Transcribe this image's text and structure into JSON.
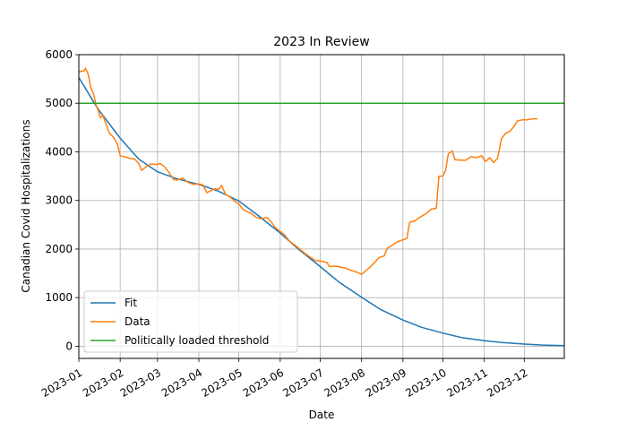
{
  "chart_data": {
    "type": "line",
    "title": "2023 In Review",
    "xlabel": "Date",
    "ylabel": "Canadian Covid Hospitalizations",
    "xlim": [
      "2023-01-01",
      "2023-12-31"
    ],
    "ylim": [
      -250,
      6000
    ],
    "x_ticks": [
      {
        "date": "2023-01-01",
        "label": "2023-01"
      },
      {
        "date": "2023-02-01",
        "label": "2023-02"
      },
      {
        "date": "2023-03-01",
        "label": "2023-03"
      },
      {
        "date": "2023-04-01",
        "label": "2023-04"
      },
      {
        "date": "2023-05-01",
        "label": "2023-05"
      },
      {
        "date": "2023-06-01",
        "label": "2023-06"
      },
      {
        "date": "2023-07-01",
        "label": "2023-07"
      },
      {
        "date": "2023-08-01",
        "label": "2023-08"
      },
      {
        "date": "2023-09-01",
        "label": "2023-09"
      },
      {
        "date": "2023-10-01",
        "label": "2023-10"
      },
      {
        "date": "2023-11-01",
        "label": "2023-11"
      },
      {
        "date": "2023-12-01",
        "label": "2023-12"
      }
    ],
    "y_ticks": [
      0,
      1000,
      2000,
      3000,
      4000,
      5000,
      6000
    ],
    "grid": true,
    "legend_position": "lower-left",
    "series": [
      {
        "name": "Fit",
        "color": "#1f77b4",
        "points": [
          [
            "2023-01-01",
            5530
          ],
          [
            "2023-01-15",
            4900
          ],
          [
            "2023-02-01",
            4280
          ],
          [
            "2023-02-15",
            3850
          ],
          [
            "2023-03-01",
            3590
          ],
          [
            "2023-03-15",
            3450
          ],
          [
            "2023-04-01",
            3330
          ],
          [
            "2023-04-15",
            3200
          ],
          [
            "2023-05-01",
            2990
          ],
          [
            "2023-05-15",
            2700
          ],
          [
            "2023-06-01",
            2330
          ],
          [
            "2023-06-15",
            1990
          ],
          [
            "2023-07-01",
            1640
          ],
          [
            "2023-07-15",
            1320
          ],
          [
            "2023-08-01",
            1010
          ],
          [
            "2023-08-15",
            760
          ],
          [
            "2023-09-01",
            540
          ],
          [
            "2023-09-15",
            390
          ],
          [
            "2023-10-01",
            270
          ],
          [
            "2023-10-15",
            180
          ],
          [
            "2023-11-01",
            115
          ],
          [
            "2023-11-15",
            75
          ],
          [
            "2023-12-01",
            45
          ],
          [
            "2023-12-15",
            25
          ],
          [
            "2023-12-31",
            12
          ]
        ]
      },
      {
        "name": "Data",
        "color": "#ff7f0e",
        "points": [
          [
            "2023-01-01",
            5640
          ],
          [
            "2023-01-03",
            5660
          ],
          [
            "2023-01-05",
            5670
          ],
          [
            "2023-01-06",
            5720
          ],
          [
            "2023-01-08",
            5600
          ],
          [
            "2023-01-10",
            5320
          ],
          [
            "2023-01-12",
            5200
          ],
          [
            "2023-01-14",
            4950
          ],
          [
            "2023-01-16",
            4820
          ],
          [
            "2023-01-17",
            4700
          ],
          [
            "2023-01-19",
            4750
          ],
          [
            "2023-01-21",
            4600
          ],
          [
            "2023-01-24",
            4380
          ],
          [
            "2023-01-27",
            4300
          ],
          [
            "2023-01-30",
            4150
          ],
          [
            "2023-02-01",
            3920
          ],
          [
            "2023-02-04",
            3900
          ],
          [
            "2023-02-08",
            3870
          ],
          [
            "2023-02-12",
            3850
          ],
          [
            "2023-02-15",
            3760
          ],
          [
            "2023-02-17",
            3620
          ],
          [
            "2023-02-20",
            3680
          ],
          [
            "2023-02-24",
            3750
          ],
          [
            "2023-02-28",
            3740
          ],
          [
            "2023-03-03",
            3760
          ],
          [
            "2023-03-06",
            3700
          ],
          [
            "2023-03-09",
            3600
          ],
          [
            "2023-03-13",
            3430
          ],
          [
            "2023-03-16",
            3420
          ],
          [
            "2023-03-20",
            3460
          ],
          [
            "2023-03-24",
            3370
          ],
          [
            "2023-03-28",
            3330
          ],
          [
            "2023-04-01",
            3340
          ],
          [
            "2023-04-04",
            3320
          ],
          [
            "2023-04-07",
            3160
          ],
          [
            "2023-04-10",
            3200
          ],
          [
            "2023-04-13",
            3240
          ],
          [
            "2023-04-16",
            3230
          ],
          [
            "2023-04-18",
            3310
          ],
          [
            "2023-04-21",
            3130
          ],
          [
            "2023-04-25",
            3060
          ],
          [
            "2023-04-28",
            2980
          ],
          [
            "2023-05-01",
            2930
          ],
          [
            "2023-05-04",
            2820
          ],
          [
            "2023-05-07",
            2770
          ],
          [
            "2023-05-10",
            2740
          ],
          [
            "2023-05-14",
            2650
          ],
          [
            "2023-05-18",
            2620
          ],
          [
            "2023-05-22",
            2650
          ],
          [
            "2023-05-25",
            2570
          ],
          [
            "2023-05-28",
            2450
          ],
          [
            "2023-06-01",
            2360
          ],
          [
            "2023-06-04",
            2300
          ],
          [
            "2023-06-08",
            2160
          ],
          [
            "2023-06-12",
            2080
          ],
          [
            "2023-06-16",
            1990
          ],
          [
            "2023-06-20",
            1900
          ],
          [
            "2023-06-24",
            1820
          ],
          [
            "2023-06-28",
            1760
          ],
          [
            "2023-07-02",
            1750
          ],
          [
            "2023-07-06",
            1720
          ],
          [
            "2023-07-08",
            1640
          ],
          [
            "2023-07-12",
            1650
          ],
          [
            "2023-07-16",
            1630
          ],
          [
            "2023-07-20",
            1610
          ],
          [
            "2023-07-24",
            1560
          ],
          [
            "2023-07-28",
            1530
          ],
          [
            "2023-08-01",
            1480
          ],
          [
            "2023-08-04",
            1550
          ],
          [
            "2023-08-07",
            1620
          ],
          [
            "2023-08-10",
            1700
          ],
          [
            "2023-08-14",
            1820
          ],
          [
            "2023-08-18",
            1860
          ],
          [
            "2023-08-20",
            2010
          ],
          [
            "2023-08-24",
            2080
          ],
          [
            "2023-08-28",
            2150
          ],
          [
            "2023-09-01",
            2190
          ],
          [
            "2023-09-04",
            2220
          ],
          [
            "2023-09-06",
            2550
          ],
          [
            "2023-09-10",
            2580
          ],
          [
            "2023-09-14",
            2660
          ],
          [
            "2023-09-18",
            2720
          ],
          [
            "2023-09-22",
            2820
          ],
          [
            "2023-09-26",
            2840
          ],
          [
            "2023-09-28",
            3500
          ],
          [
            "2023-10-01",
            3500
          ],
          [
            "2023-10-03",
            3620
          ],
          [
            "2023-10-05",
            3960
          ],
          [
            "2023-10-08",
            4020
          ],
          [
            "2023-10-10",
            3840
          ],
          [
            "2023-10-14",
            3830
          ],
          [
            "2023-10-18",
            3830
          ],
          [
            "2023-10-22",
            3900
          ],
          [
            "2023-10-26",
            3880
          ],
          [
            "2023-10-30",
            3920
          ],
          [
            "2023-11-02",
            3800
          ],
          [
            "2023-11-05",
            3880
          ],
          [
            "2023-11-08",
            3780
          ],
          [
            "2023-11-11",
            3870
          ],
          [
            "2023-11-14",
            4280
          ],
          [
            "2023-11-17",
            4380
          ],
          [
            "2023-11-20",
            4420
          ],
          [
            "2023-11-23",
            4510
          ],
          [
            "2023-11-26",
            4640
          ],
          [
            "2023-11-30",
            4660
          ],
          [
            "2023-12-03",
            4660
          ],
          [
            "2023-12-07",
            4680
          ],
          [
            "2023-12-11",
            4680
          ]
        ]
      },
      {
        "name": "Politically loaded threshold",
        "color": "#2ca02c",
        "points": [
          [
            "2023-01-01",
            5000
          ],
          [
            "2023-12-31",
            5000
          ]
        ]
      }
    ]
  }
}
